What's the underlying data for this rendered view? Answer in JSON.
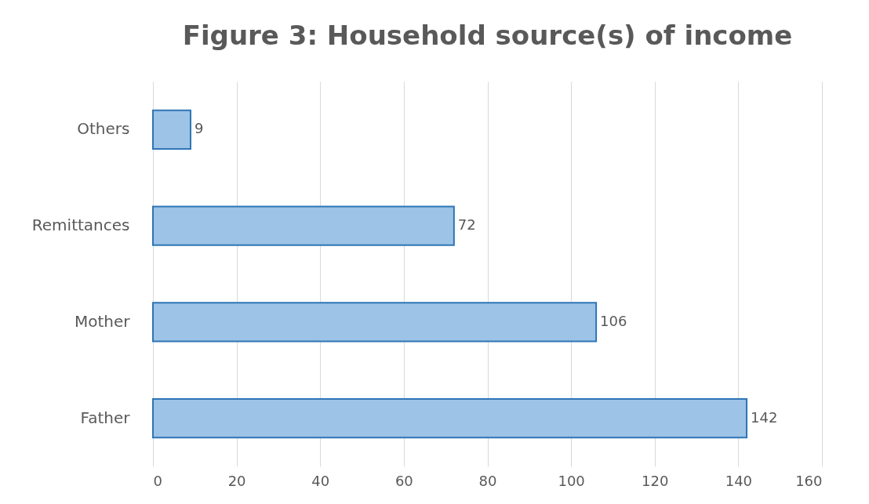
{
  "chart_data": {
    "type": "bar",
    "orientation": "horizontal",
    "title": "Figure 3: Household source(s) of income",
    "categories": [
      "Others",
      "Remittances",
      "Mother",
      "Father"
    ],
    "values": [
      9,
      72,
      106,
      142
    ],
    "color": "#9dc3e6",
    "xlim": [
      0,
      160
    ],
    "xticks": [
      0,
      20,
      40,
      60,
      80,
      100,
      120,
      140,
      160
    ],
    "grid": "x",
    "data_labels": true
  }
}
